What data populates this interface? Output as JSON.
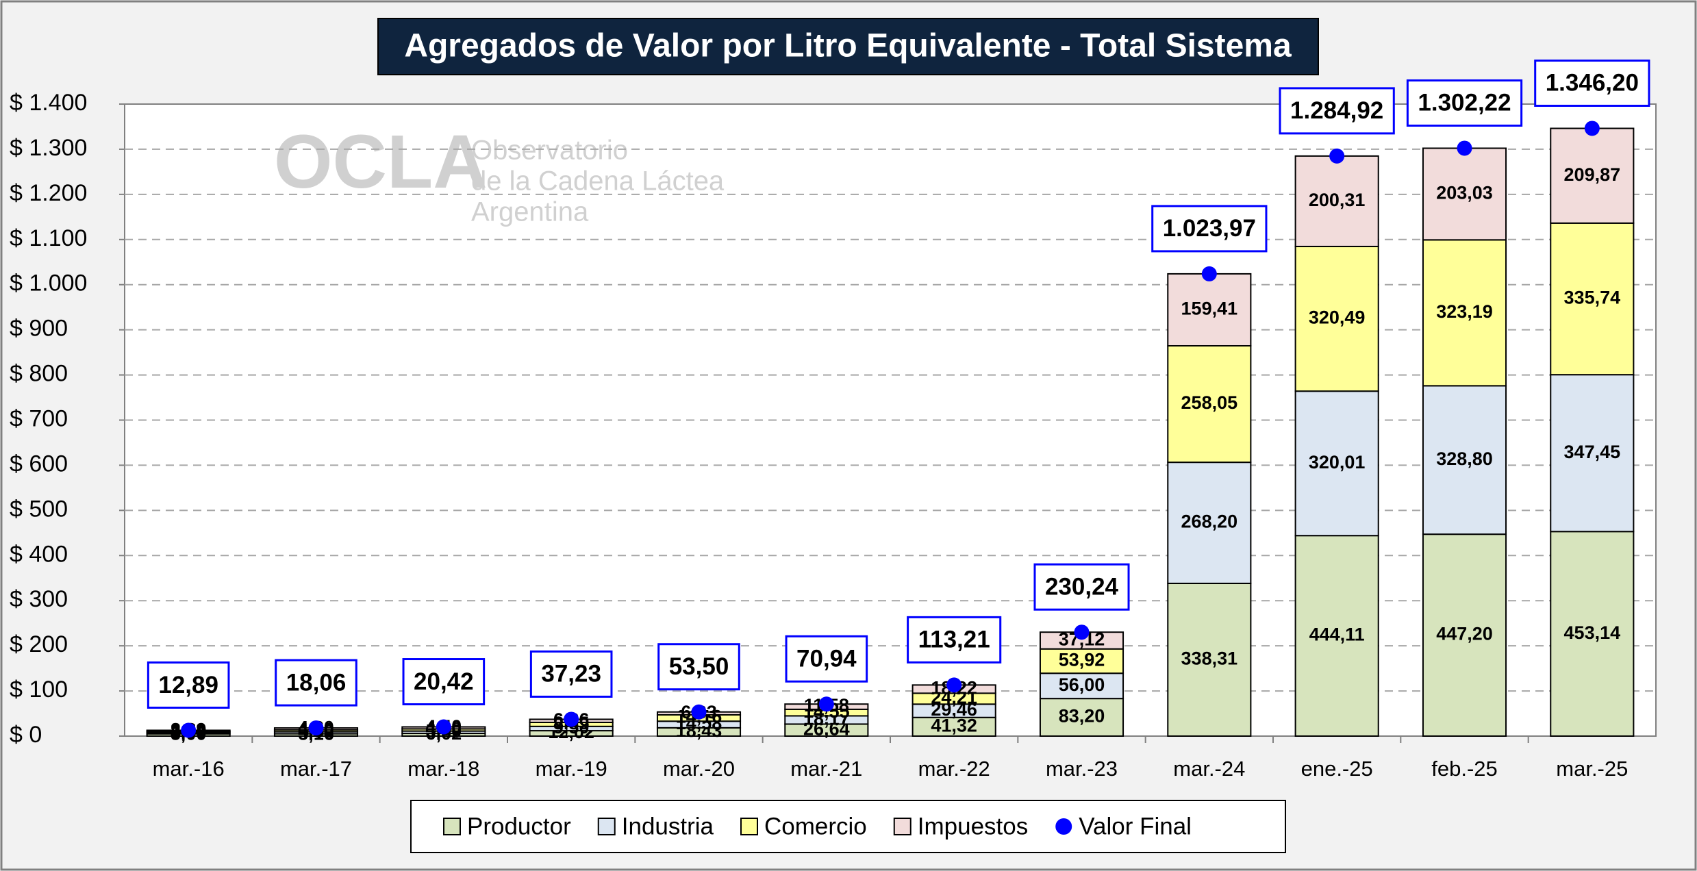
{
  "chart_data": {
    "type": "bar",
    "stacked": true,
    "title": "Agregados de Valor por Litro Equivalente - Total Sistema",
    "watermark": [
      "OCLA",
      "Observatorio",
      "de la Cadena Láctea",
      "Argentina"
    ],
    "categories": [
      "mar.-16",
      "mar.-17",
      "mar.-18",
      "mar.-19",
      "mar.-20",
      "mar.-21",
      "mar.-22",
      "mar.-23",
      "mar.-24",
      "ene.-25",
      "feb.-25",
      "mar.-25"
    ],
    "series": [
      {
        "name": "Productor",
        "color": "#d7e4bd",
        "values": [
          5.0,
          5.16,
          6.02,
          12.02,
          18.43,
          26.64,
          41.32,
          83.2,
          338.31,
          444.11,
          447.2,
          453.14
        ],
        "value_labels": [
          "5,00",
          "5,16",
          "6,02",
          "12,02",
          "18,43",
          "26,64",
          "41,32",
          "83,20",
          "338,31",
          "444,11",
          "447,20",
          "453,14"
        ]
      },
      {
        "name": "Industria",
        "color": "#dce6f2",
        "values": [
          3.0,
          4.5,
          5.2,
          9.5,
          14.58,
          18.17,
          29.46,
          56.0,
          268.2,
          320.01,
          328.8,
          347.45
        ],
        "value_labels": [
          "3,00",
          "4,50",
          "5,20",
          "9,50",
          "14,58",
          "18,17",
          "29,46",
          "56,00",
          "268,20",
          "320,01",
          "328,80",
          "347,45"
        ]
      },
      {
        "name": "Comercio",
        "color": "#ffff99",
        "values": [
          2.5,
          4.2,
          4.8,
          8.85,
          14.16,
          14.55,
          24.21,
          53.92,
          258.05,
          320.49,
          323.19,
          335.74
        ],
        "value_labels": [
          "2,50",
          "4,20",
          "4,80",
          "8,85",
          "14,16",
          "14,55",
          "24,21",
          "53,92",
          "258,05",
          "320,49",
          "323,19",
          "335,74"
        ]
      },
      {
        "name": "Impuestos",
        "color": "#f2dcdb",
        "values": [
          2.39,
          4.2,
          4.4,
          6.86,
          6.33,
          11.58,
          18.22,
          37.12,
          159.41,
          200.31,
          203.03,
          209.87
        ],
        "value_labels": [
          "2,39",
          "4,20",
          "4,40",
          "6,86",
          "6,33",
          "11,58",
          "18,22",
          "37,12",
          "159,41",
          "200,31",
          "203,03",
          "209,87"
        ]
      },
      {
        "name": "Valor Final",
        "type": "scatter",
        "color": "#0000ff",
        "values": [
          12.89,
          18.06,
          20.42,
          37.23,
          53.5,
          70.94,
          113.21,
          230.24,
          1023.97,
          1284.92,
          1302.22,
          1346.2
        ],
        "value_labels": [
          "12,89",
          "18,06",
          "20,42",
          "37,23",
          "53,50",
          "70,94",
          "113,21",
          "230,24",
          "1.023,97",
          "1.284,92",
          "1.302,22",
          "1.346,20"
        ]
      }
    ],
    "ylim": [
      0,
      1400
    ],
    "yticks": [
      {
        "value": 0,
        "label": "$ 0"
      },
      {
        "value": 100,
        "label": "$ 100"
      },
      {
        "value": 200,
        "label": "$ 200"
      },
      {
        "value": 300,
        "label": "$ 300"
      },
      {
        "value": 400,
        "label": "$ 400"
      },
      {
        "value": 500,
        "label": "$ 500"
      },
      {
        "value": 600,
        "label": "$ 600"
      },
      {
        "value": 700,
        "label": "$ 700"
      },
      {
        "value": 800,
        "label": "$ 800"
      },
      {
        "value": 900,
        "label": "$ 900"
      },
      {
        "value": 1000,
        "label": "$ 1.000"
      },
      {
        "value": 1100,
        "label": "$ 1.100"
      },
      {
        "value": 1200,
        "label": "$ 1.200"
      },
      {
        "value": 1300,
        "label": "$ 1.300"
      },
      {
        "value": 1400,
        "label": "$ 1.400"
      }
    ],
    "grid": true,
    "legend": "bottom"
  }
}
